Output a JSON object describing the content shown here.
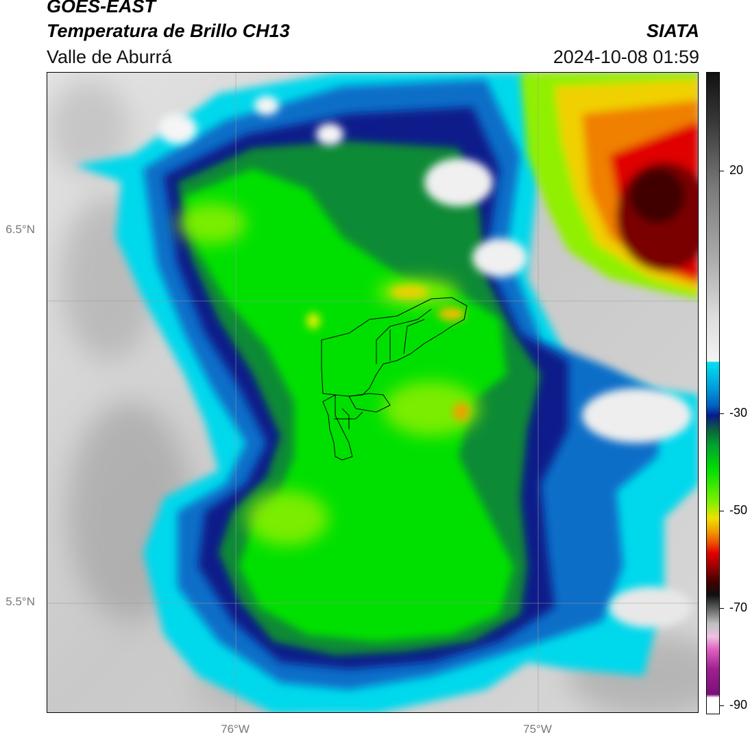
{
  "header": {
    "satellite": "GOES-EAST",
    "product": "Temperatura de Brillo CH13",
    "organization": "SIATA",
    "region": "Valle de Aburrá",
    "datetime": "2024-10-08 01:59"
  },
  "map": {
    "lat_labels": [
      "6.5°N",
      "5.5°N"
    ],
    "lon_labels": [
      "76°W",
      "75°W"
    ]
  },
  "colorbar": {
    "ticks": [
      "20",
      "-30",
      "-50",
      "-70",
      "-90"
    ],
    "colors": {
      "black": "#111111",
      "gray": "#8a8a8a",
      "white": "#f2f2f2",
      "cyan": "#00e0f0",
      "blue": "#0070c8",
      "navy": "#0a1a8a",
      "dark_green": "#0a8a2a",
      "green": "#00e000",
      "lime": "#90f000",
      "yellow": "#f0e000",
      "orange": "#f08000",
      "red": "#e00000",
      "dark_red": "#500000",
      "pink": "#e060c0",
      "purple": "#80108a"
    }
  }
}
